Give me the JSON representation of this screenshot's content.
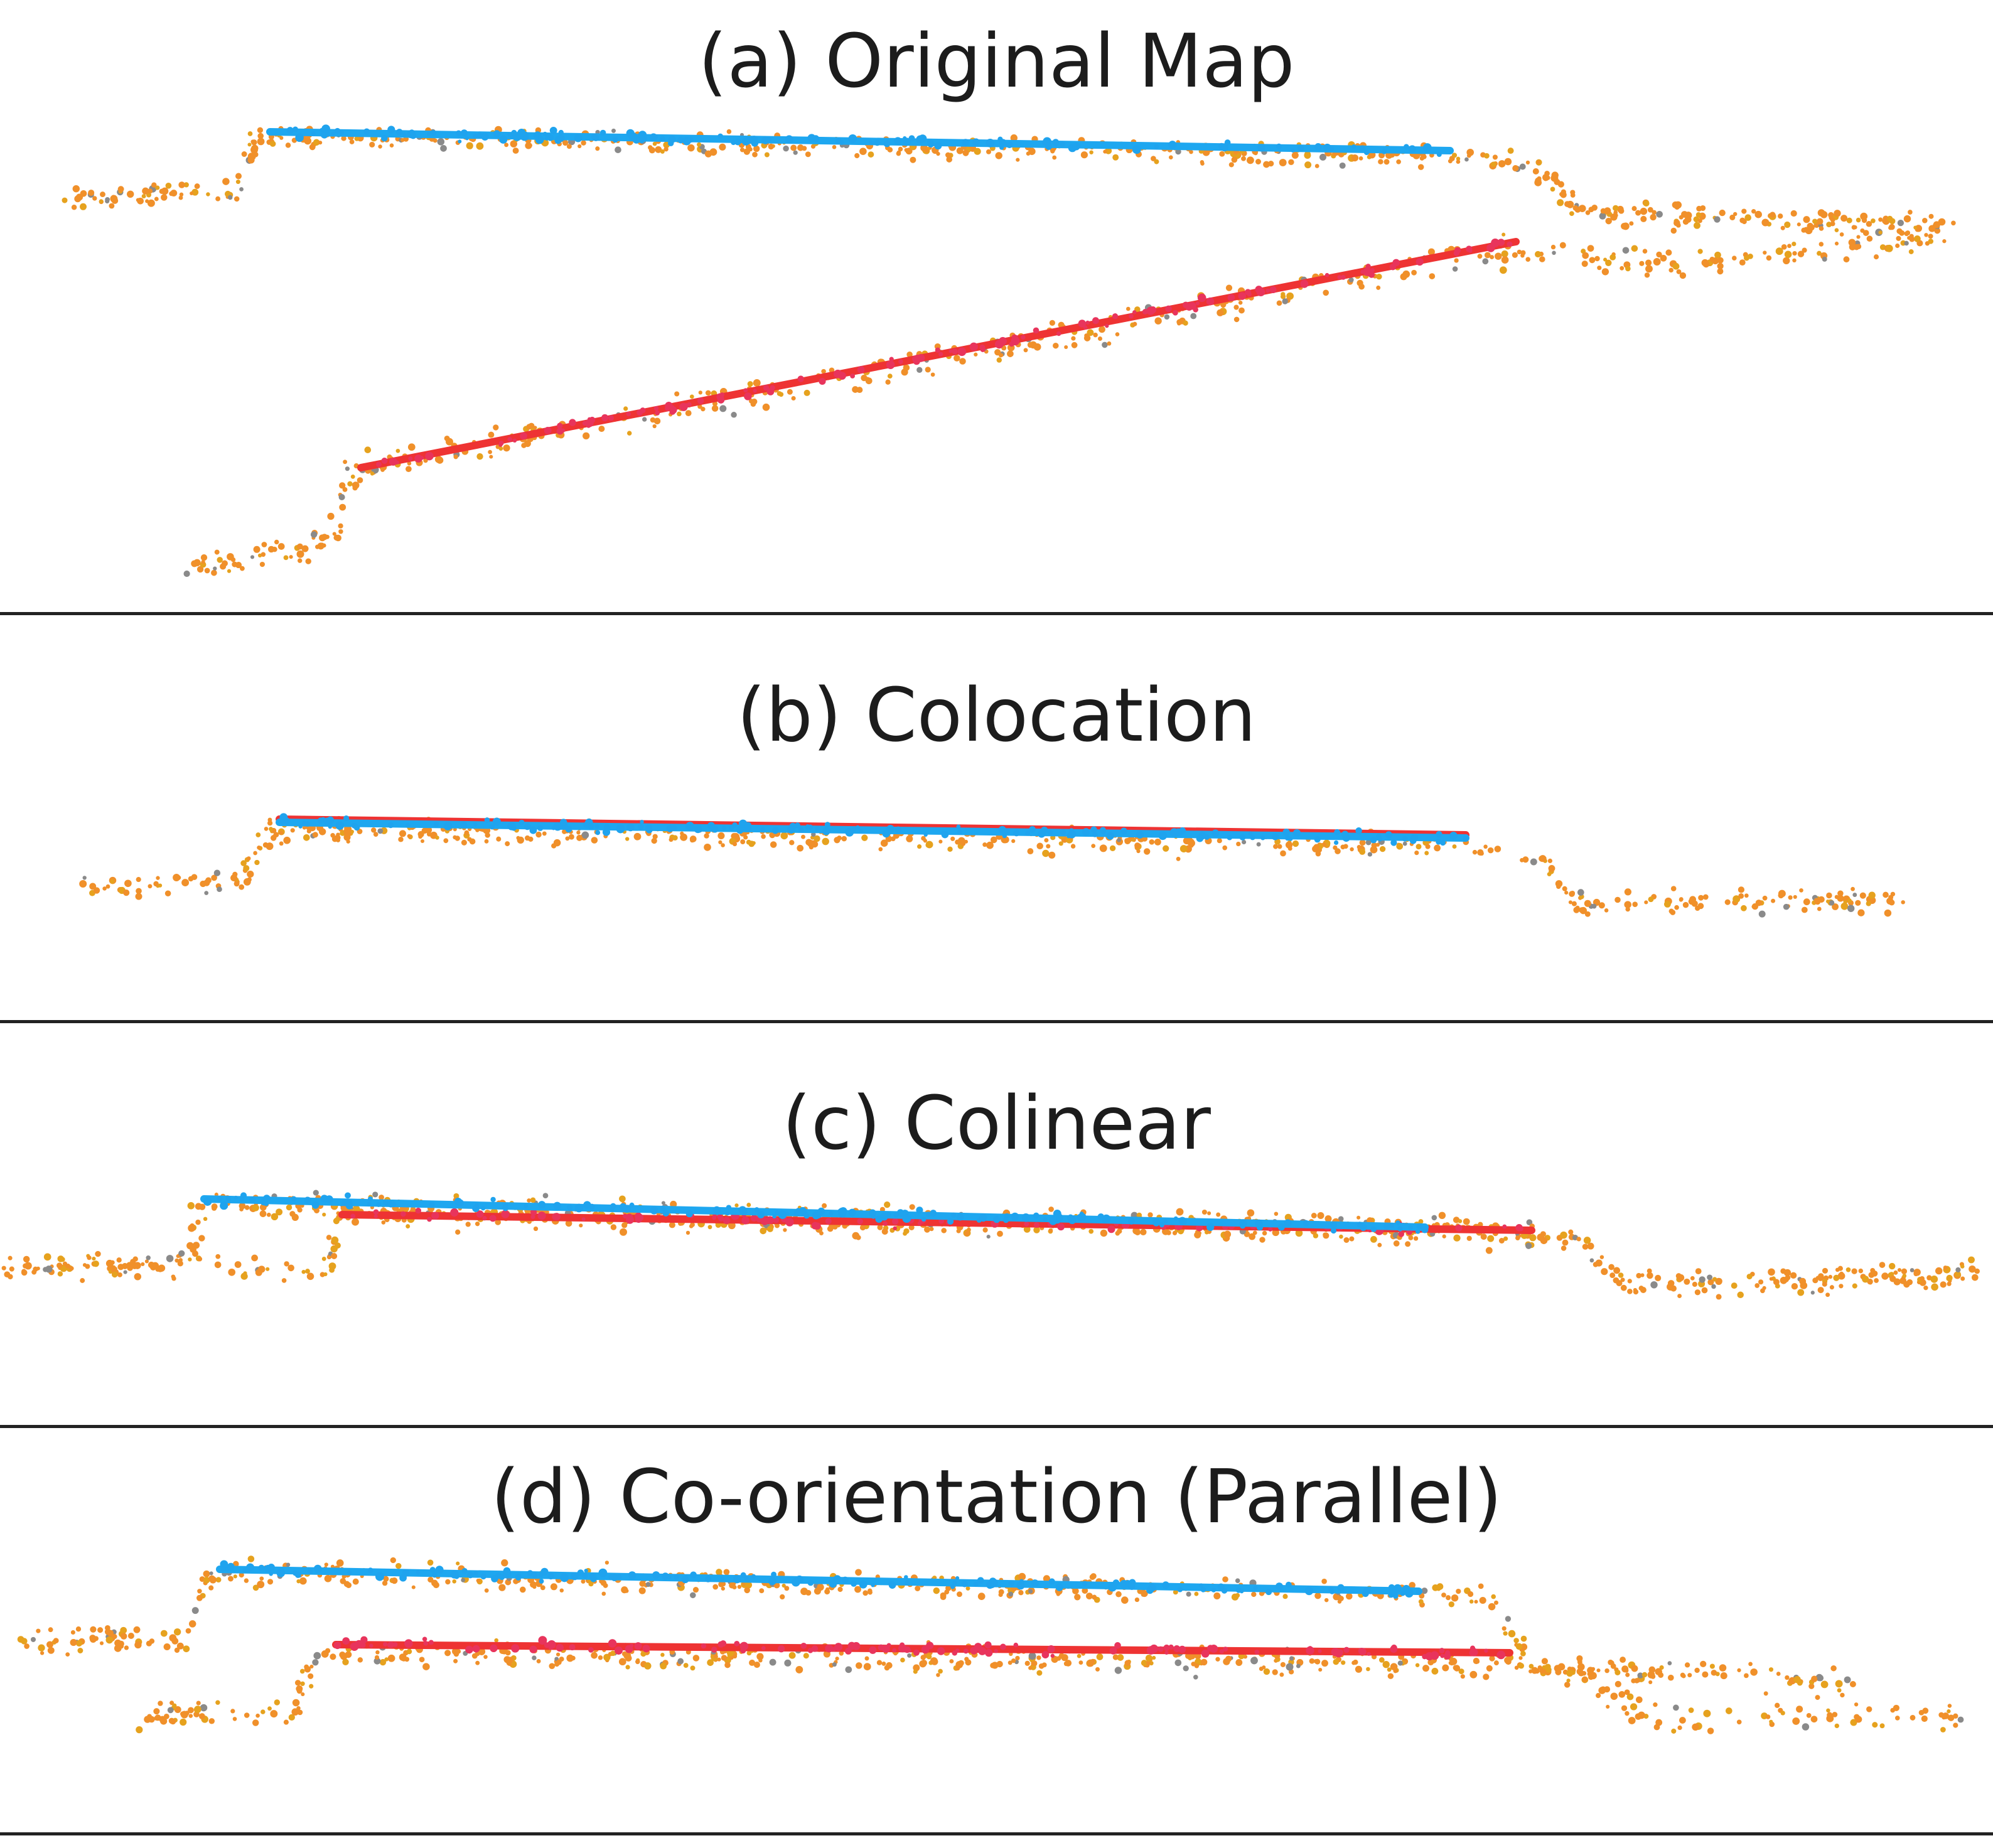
{
  "figure": {
    "panels": [
      {
        "id": "a",
        "title": "(a) Original Map"
      },
      {
        "id": "b",
        "title": "(b) Colocation"
      },
      {
        "id": "c",
        "title": "(c) Colinear"
      },
      {
        "id": "d",
        "title": "(d) Co-orientation (Parallel)"
      }
    ]
  },
  "colors": {
    "map_a_line": "#1ea7f0",
    "map_b_line": "#ee3333",
    "map_a_points": "#1fa3ee",
    "map_b_points": "#e8345c",
    "cloud_points": "#f0902a",
    "cloud_points_alt": "#e6a21e",
    "gray_points": "#8a8a8a",
    "divider": "#222222",
    "title_text": "#1c1c1c"
  }
}
